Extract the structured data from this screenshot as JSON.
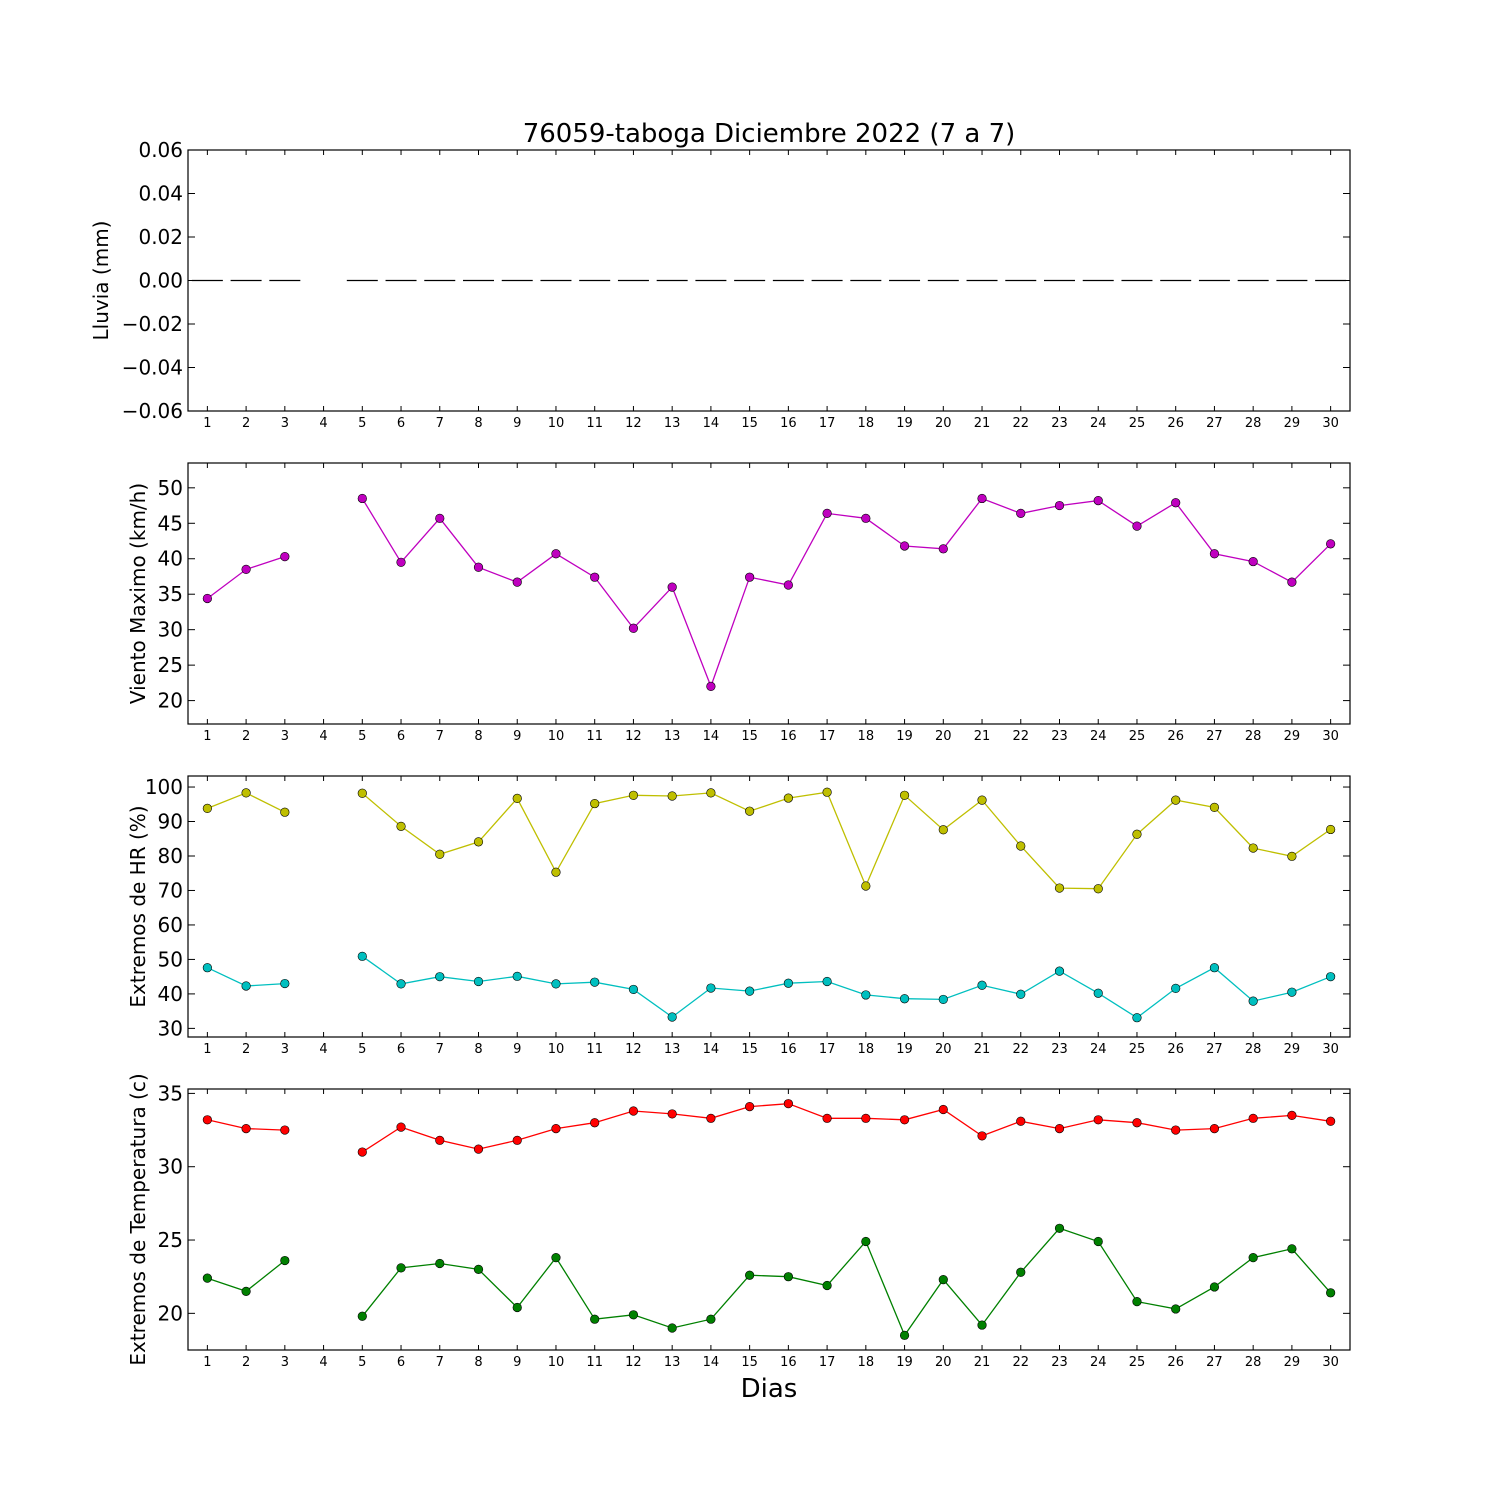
{
  "figure": {
    "title": "76059-taboga Diciembre 2022  (7 a 7)",
    "xlabel": "Dias"
  },
  "chart_data": [
    {
      "type": "line",
      "title": "76059-taboga Diciembre 2022  (7 a 7)",
      "xlabel": "",
      "ylabel": "Lluvia (mm)",
      "x": [
        1,
        2,
        3,
        4,
        5,
        6,
        7,
        8,
        9,
        10,
        11,
        12,
        13,
        14,
        15,
        16,
        17,
        18,
        19,
        20,
        21,
        22,
        23,
        24,
        25,
        26,
        27,
        28,
        29,
        30
      ],
      "xlim": [
        0.5,
        30.5
      ],
      "ylim": [
        -0.06,
        0.06
      ],
      "yticks": [
        -0.06,
        -0.04,
        -0.02,
        0.0,
        0.02,
        0.04,
        0.06
      ],
      "ytick_labels": [
        "−0.06",
        "−0.04",
        "−0.02",
        "0.00",
        "0.02",
        "0.04",
        "0.06"
      ],
      "grid": false,
      "series": [
        {
          "style": "bar-dash",
          "color": "#000000",
          "values": [
            0,
            0,
            0,
            null,
            0,
            0,
            0,
            0,
            0,
            0,
            0,
            0,
            0,
            0,
            0,
            0,
            0,
            0,
            0,
            0,
            0,
            0,
            0,
            0,
            0,
            0,
            0,
            0,
            0,
            0
          ]
        }
      ]
    },
    {
      "type": "line",
      "xlabel": "",
      "ylabel": "Viento Maximo (km/h)",
      "x": [
        1,
        2,
        3,
        4,
        5,
        6,
        7,
        8,
        9,
        10,
        11,
        12,
        13,
        14,
        15,
        16,
        17,
        18,
        19,
        20,
        21,
        22,
        23,
        24,
        25,
        26,
        27,
        28,
        29,
        30
      ],
      "xlim": [
        0.5,
        30.5
      ],
      "ylim": [
        16.7,
        53.5
      ],
      "yticks": [
        20,
        25,
        30,
        35,
        40,
        45,
        50
      ],
      "ytick_labels": [
        "20",
        "25",
        "30",
        "35",
        "40",
        "45",
        "50"
      ],
      "grid": false,
      "series": [
        {
          "color": "#bf00bf",
          "values": [
            34.4,
            38.5,
            40.3,
            null,
            48.5,
            39.5,
            45.7,
            38.8,
            36.7,
            40.7,
            37.4,
            30.2,
            36.0,
            22.0,
            37.4,
            36.3,
            46.4,
            45.7,
            41.8,
            41.4,
            48.5,
            46.4,
            47.5,
            48.2,
            44.6,
            47.9,
            40.7,
            39.6,
            36.7,
            42.1
          ]
        }
      ]
    },
    {
      "type": "line",
      "xlabel": "",
      "ylabel": "Extremos de HR (%)",
      "x": [
        1,
        2,
        3,
        4,
        5,
        6,
        7,
        8,
        9,
        10,
        11,
        12,
        13,
        14,
        15,
        16,
        17,
        18,
        19,
        20,
        21,
        22,
        23,
        24,
        25,
        26,
        27,
        28,
        29,
        30
      ],
      "xlim": [
        0.5,
        30.5
      ],
      "ylim": [
        27.5,
        103.2
      ],
      "yticks": [
        30,
        40,
        50,
        60,
        70,
        80,
        90,
        100
      ],
      "ytick_labels": [
        "30",
        "40",
        "50",
        "60",
        "70",
        "80",
        "90",
        "100"
      ],
      "grid": false,
      "series": [
        {
          "color": "#bfbf00",
          "values": [
            93.8,
            98.3,
            92.7,
            null,
            98.2,
            88.6,
            80.5,
            84.1,
            96.7,
            75.3,
            95.2,
            97.6,
            97.4,
            98.3,
            93.0,
            96.8,
            98.5,
            71.3,
            97.6,
            87.6,
            96.2,
            82.9,
            70.7,
            70.5,
            86.3,
            96.2,
            94.1,
            82.3,
            79.9,
            87.7
          ]
        },
        {
          "color": "#00bfbf",
          "values": [
            47.6,
            42.3,
            43.0,
            null,
            50.9,
            42.9,
            45.0,
            43.6,
            45.1,
            42.9,
            43.4,
            41.3,
            33.3,
            41.7,
            40.8,
            43.1,
            43.6,
            39.7,
            38.6,
            38.4,
            42.5,
            39.9,
            46.6,
            40.2,
            33.1,
            41.6,
            47.6,
            37.9,
            40.5,
            45.0
          ]
        }
      ]
    },
    {
      "type": "line",
      "xlabel": "Dias",
      "ylabel": "Extremos de Temperatura (c)",
      "x": [
        1,
        2,
        3,
        4,
        5,
        6,
        7,
        8,
        9,
        10,
        11,
        12,
        13,
        14,
        15,
        16,
        17,
        18,
        19,
        20,
        21,
        22,
        23,
        24,
        25,
        26,
        27,
        28,
        29,
        30
      ],
      "xlim": [
        0.5,
        30.5
      ],
      "ylim": [
        17.5,
        35.3
      ],
      "yticks": [
        20,
        25,
        30,
        35
      ],
      "ytick_labels": [
        "20",
        "25",
        "30",
        "35"
      ],
      "grid": false,
      "series": [
        {
          "color": "#ff0000",
          "values": [
            33.2,
            32.6,
            32.5,
            null,
            31.0,
            32.7,
            31.8,
            31.2,
            31.8,
            32.6,
            33.0,
            33.8,
            33.6,
            33.3,
            34.1,
            34.3,
            33.3,
            33.3,
            33.2,
            33.9,
            32.1,
            33.1,
            32.6,
            33.2,
            33.0,
            32.5,
            32.6,
            33.3,
            33.5,
            33.1
          ]
        },
        {
          "color": "#008000",
          "values": [
            22.4,
            21.5,
            23.6,
            null,
            19.8,
            23.1,
            23.4,
            23.0,
            20.4,
            23.8,
            19.6,
            19.9,
            19.0,
            19.6,
            22.6,
            22.5,
            21.9,
            24.9,
            18.5,
            22.3,
            19.2,
            22.8,
            25.8,
            24.9,
            20.8,
            20.3,
            21.8,
            23.8,
            24.4,
            21.4
          ]
        }
      ]
    }
  ]
}
